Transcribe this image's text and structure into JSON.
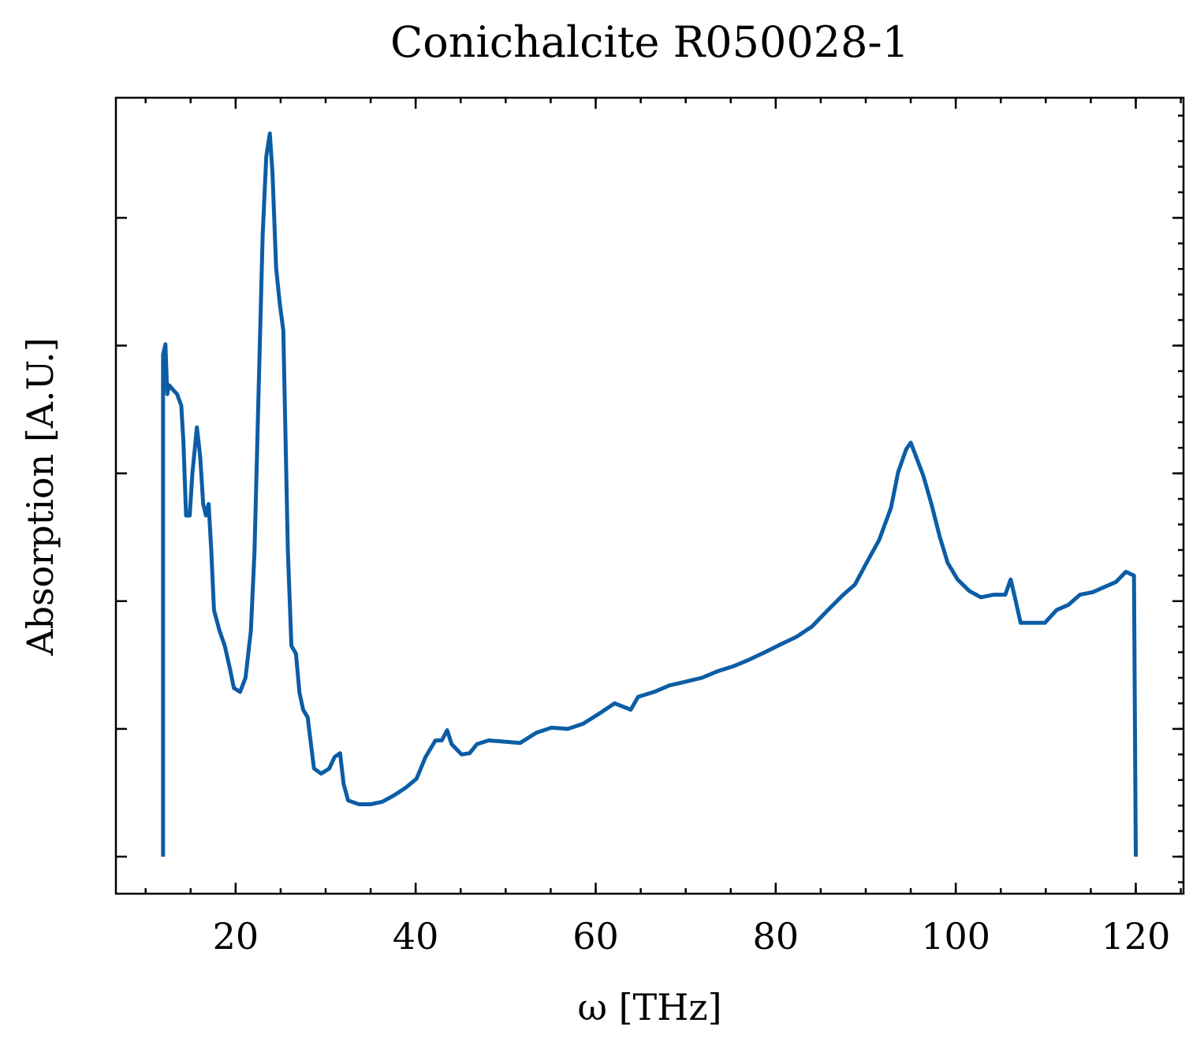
{
  "chart_data": {
    "type": "line",
    "title": "Conichalcite R050028-1",
    "x_label": "ω [THz]",
    "y_label": "Absorption [A.U.]",
    "x": [
      11.94,
      11.94,
      12.2,
      12.4,
      12.6,
      13.1,
      13.5,
      13.96,
      14.2,
      14.5,
      14.9,
      15.2,
      15.7,
      16.06,
      16.4,
      16.7,
      17.0,
      17.3,
      17.6,
      18.2,
      18.8,
      19.4,
      19.8,
      20.5,
      21.1,
      21.7,
      22.1,
      22.5,
      23.0,
      23.4,
      23.8,
      24.1,
      24.5,
      24.9,
      25.3,
      25.8,
      26.2,
      26.7,
      27.1,
      27.5,
      28.0,
      28.7,
      29.5,
      30.4,
      31.0,
      31.6,
      32.0,
      32.5,
      33.7,
      35.0,
      36.3,
      37.6,
      38.9,
      40.1,
      41.1,
      42.2,
      42.9,
      43.5,
      44.0,
      45.1,
      46.0,
      46.8,
      48.1,
      49.9,
      51.6,
      53.4,
      55.1,
      56.9,
      58.6,
      60.4,
      62.1,
      63.9,
      64.7,
      66.5,
      68.2,
      70.0,
      71.8,
      73.5,
      75.3,
      77.0,
      78.8,
      80.5,
      82.3,
      84.0,
      85.8,
      87.5,
      88.8,
      90.1,
      91.5,
      92.8,
      93.6,
      94.5,
      95.0,
      95.6,
      96.4,
      97.3,
      98.2,
      99.1,
      100.2,
      101.5,
      102.8,
      104.2,
      105.5,
      106.1,
      106.6,
      107.2,
      108.6,
      109.9,
      111.2,
      112.5,
      113.8,
      115.2,
      116.5,
      117.8,
      118.9,
      119.8,
      120.0
    ],
    "series": [
      {
        "color": "#0c5da5",
        "values": [
          0,
          3.93,
          4.01,
          3.62,
          3.69,
          3.65,
          3.62,
          3.53,
          3.25,
          2.67,
          2.67,
          3.0,
          3.36,
          3.13,
          2.76,
          2.67,
          2.76,
          2.39,
          1.93,
          1.77,
          1.65,
          1.46,
          1.32,
          1.29,
          1.4,
          1.77,
          2.39,
          3.5,
          4.86,
          5.48,
          5.66,
          5.35,
          4.61,
          4.33,
          4.12,
          2.39,
          1.65,
          1.59,
          1.28,
          1.15,
          1.09,
          0.69,
          0.65,
          0.69,
          0.78,
          0.81,
          0.57,
          0.44,
          0.41,
          0.41,
          0.43,
          0.48,
          0.54,
          0.61,
          0.78,
          0.91,
          0.91,
          0.99,
          0.88,
          0.8,
          0.81,
          0.88,
          0.91,
          0.9,
          0.89,
          0.97,
          1.01,
          1.0,
          1.04,
          1.12,
          1.2,
          1.15,
          1.25,
          1.29,
          1.34,
          1.37,
          1.4,
          1.45,
          1.49,
          1.54,
          1.6,
          1.66,
          1.72,
          1.8,
          1.93,
          2.05,
          2.13,
          2.3,
          2.48,
          2.73,
          3.01,
          3.19,
          3.24,
          3.13,
          2.98,
          2.76,
          2.51,
          2.3,
          2.17,
          2.08,
          2.03,
          2.05,
          2.05,
          2.17,
          2.02,
          1.83,
          1.83,
          1.83,
          1.93,
          1.97,
          2.05,
          2.07,
          2.11,
          2.15,
          2.23,
          2.2,
          0
        ]
      }
    ],
    "xlim": [
      6.7,
      125.3
    ],
    "xticks": [
      20,
      40,
      60,
      80,
      100,
      120
    ],
    "ylim": [
      -0.29,
      5.94
    ],
    "yticks": [
      0,
      1,
      2,
      3,
      4,
      5
    ]
  }
}
